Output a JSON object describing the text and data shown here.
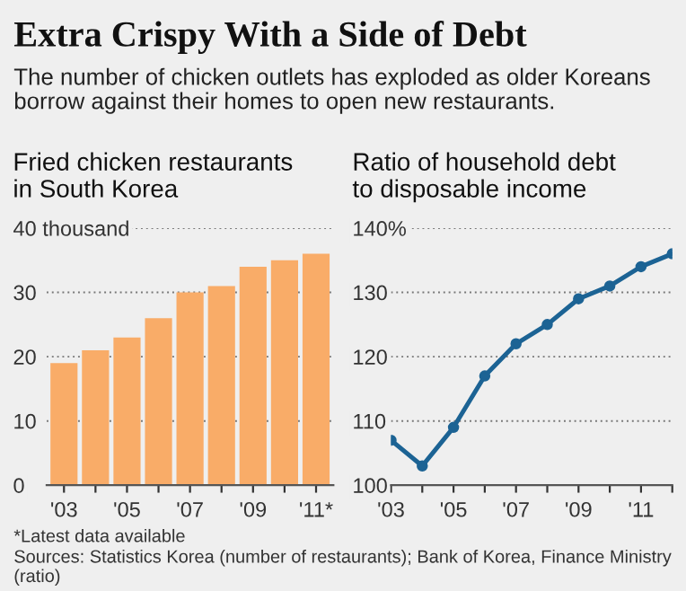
{
  "chart_data": [
    {
      "type": "bar",
      "title": "Extra Crispy With a Side of Debt",
      "subtitle": "The number of chicken outlets has exploded as older Koreans borrow against their homes to open new restaurants.",
      "ylabel": "Fried chicken restaurants\nin South Korea",
      "categories": [
        "'03",
        null,
        "'05",
        null,
        "'07",
        null,
        "'09",
        null,
        "'11*"
      ],
      "values": [
        19,
        21,
        23,
        26,
        30,
        31,
        34,
        35,
        36
      ],
      "color": "#f9ac68",
      "ylim": [
        0,
        40
      ],
      "yticks": [
        0,
        10,
        20,
        30,
        {
          "value": 40,
          "label": "40 thousand"
        }
      ],
      "grid": "y",
      "annotations": [
        "*Latest data available",
        "Sources: Statistics Korea (number of restaurants); Bank of Korea, Finance Ministry (ratio)"
      ]
    },
    {
      "type": "line",
      "ylabel": "Ratio of household debt\nto disposable income",
      "x": [
        2003,
        2004,
        2005,
        2006,
        2007,
        2008,
        2009,
        2010,
        2011,
        2012
      ],
      "values": [
        107,
        103,
        109,
        117,
        122,
        125,
        129,
        131,
        134,
        136
      ],
      "color": "#1c6394",
      "xlim": [
        2003,
        2012
      ],
      "xticks": [
        {
          "value": 2003,
          "label": "'03"
        },
        {
          "value": 2004,
          "label": null
        },
        {
          "value": 2005,
          "label": "'05"
        },
        {
          "value": 2006,
          "label": null
        },
        {
          "value": 2007,
          "label": "'07"
        },
        {
          "value": 2008,
          "label": null
        },
        {
          "value": 2009,
          "label": "'09"
        },
        {
          "value": 2010,
          "label": null
        },
        {
          "value": 2011,
          "label": "'11"
        },
        {
          "value": 2012,
          "label": null
        }
      ],
      "ylim": [
        100,
        140
      ],
      "yticks": [
        100,
        110,
        120,
        130,
        {
          "value": 140,
          "label": "140%"
        }
      ],
      "grid": "y",
      "marker": "circle",
      "line_style": "solid"
    }
  ]
}
